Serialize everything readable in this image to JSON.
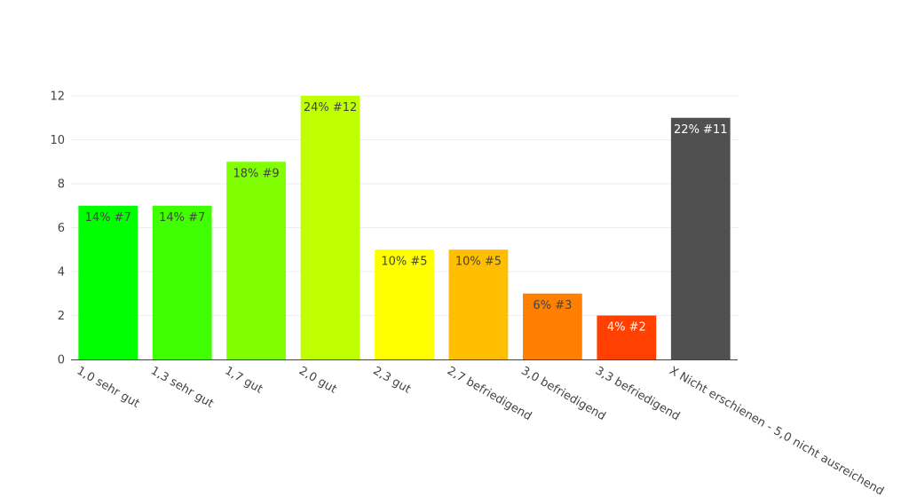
{
  "chart_data": {
    "type": "bar",
    "title": "",
    "xlabel": "",
    "ylabel": "",
    "ylim": [
      0,
      12
    ],
    "yticks": [
      0,
      2,
      4,
      6,
      8,
      10,
      12
    ],
    "grid": true,
    "categories": [
      "1,0 sehr gut",
      "1,3 sehr gut",
      "1,7 gut",
      "2,0 gut",
      "2,3 gut",
      "2,7 befriedigend",
      "3,0 befriedigend",
      "3,3 befriedigend",
      "X Nicht erschienen - 5,0 nicht ausreichend"
    ],
    "values": [
      7,
      7,
      9,
      12,
      5,
      5,
      3,
      2,
      11
    ],
    "data_labels": [
      "14% #7",
      "14% #7",
      "18% #9",
      "24% #12",
      "10% #5",
      "10% #5",
      "6% #3",
      "4% #2",
      "22% #11"
    ],
    "colors": [
      "#00ff00",
      "#40ff00",
      "#80ff00",
      "#bfff00",
      "#ffff00",
      "#ffbf00",
      "#ff8000",
      "#ff4000",
      "#505050"
    ],
    "label_colors": [
      "#444444",
      "#444444",
      "#444444",
      "#444444",
      "#444444",
      "#444444",
      "#444444",
      "#ffffff",
      "#ffffff"
    ]
  }
}
